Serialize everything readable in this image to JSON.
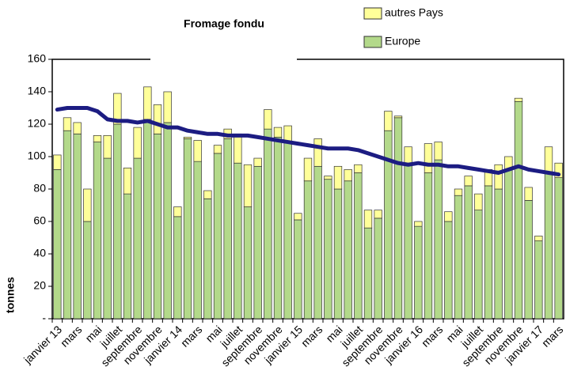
{
  "chart_data": {
    "type": "bar",
    "stacked": true,
    "title": "Fromage fondu",
    "ylabel": "tonnes",
    "categories": [
      "janvier 13",
      null,
      "mars",
      null,
      "mai",
      null,
      "juillet",
      null,
      "septembre",
      null,
      "novembre",
      null,
      "janvier 14",
      null,
      "mars",
      null,
      "mai",
      null,
      "juillet",
      null,
      "septembre",
      null,
      "novembre",
      null,
      "janvier 15",
      null,
      "mars",
      null,
      "mai",
      null,
      "juillet",
      null,
      "septembre",
      null,
      "novembre",
      null,
      "janvier 16",
      null,
      "mars",
      null,
      "mai",
      null,
      "juillet",
      null,
      "septembre",
      null,
      "novembre",
      null,
      "janvier 17",
      null,
      "mars"
    ],
    "series": [
      {
        "name": "Europe",
        "color": "#b3d98a",
        "values": [
          92,
          116,
          114,
          60,
          109,
          99,
          120,
          77,
          99,
          123,
          114,
          121,
          63,
          111,
          97,
          74,
          102,
          111,
          96,
          69,
          94,
          117,
          112,
          109,
          61,
          85,
          94,
          86,
          80,
          85,
          90,
          56,
          62,
          116,
          124,
          95,
          57,
          90,
          98,
          60,
          76,
          82,
          67,
          82,
          80,
          92,
          134,
          73,
          48,
          90,
          87
        ]
      },
      {
        "name": "autres Pays",
        "color": "#ffff99",
        "values": [
          9,
          8,
          7,
          20,
          4,
          14,
          19,
          16,
          19,
          20,
          18,
          19,
          6,
          1,
          13,
          5,
          5,
          6,
          18,
          26,
          5,
          12,
          6,
          10,
          4,
          14,
          17,
          2,
          14,
          7,
          5,
          11,
          5,
          12,
          1,
          11,
          3,
          18,
          11,
          6,
          4,
          6,
          10,
          10,
          15,
          8,
          2,
          8,
          3,
          16,
          9
        ]
      },
      {
        "type": "line",
        "color": "#1c1c82",
        "values": [
          129,
          130,
          130,
          130,
          128,
          123,
          122,
          122,
          121,
          122,
          120,
          118,
          118,
          116,
          115,
          114,
          114,
          113,
          113,
          113,
          112,
          111,
          110,
          109,
          108,
          107,
          106,
          105,
          105,
          105,
          104,
          102,
          100,
          98,
          96,
          95,
          96,
          95,
          95,
          94,
          94,
          93,
          92,
          91,
          90,
          92,
          94,
          92,
          91,
          90,
          89
        ]
      }
    ],
    "ylim": [
      0,
      160
    ],
    "yticks": [
      {
        "value": 0,
        "label": "-"
      },
      20,
      40,
      60,
      80,
      100,
      120,
      140,
      160
    ],
    "grid": false,
    "legend": "top-right"
  }
}
